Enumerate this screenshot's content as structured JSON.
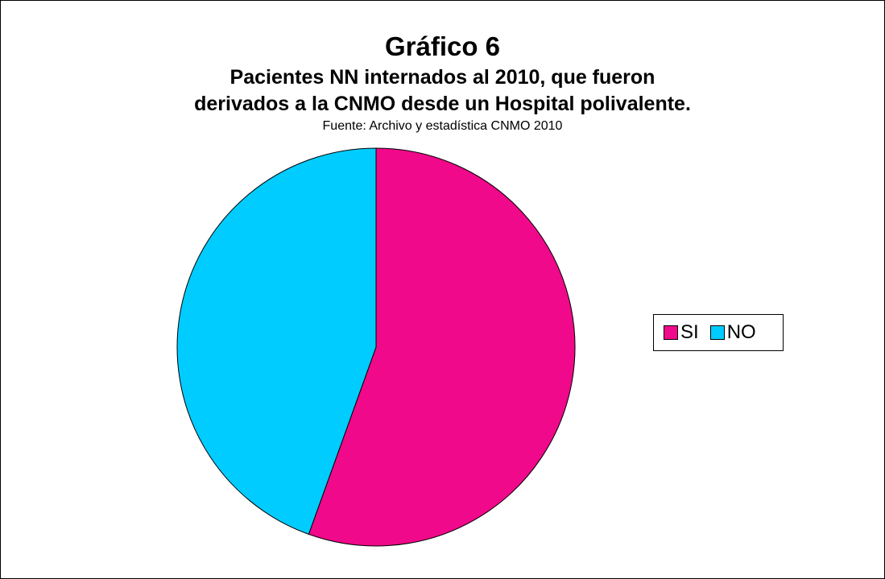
{
  "chart_data": {
    "type": "pie",
    "title": "Gráfico 6",
    "subtitle_lines": [
      "Pacientes NN internados al 2010, que fueron",
      "derivados a la CNMO desde un Hospital polivalente."
    ],
    "source": "Fuente: Archivo y estadística CNMO 2010",
    "slices": [
      {
        "label": "SI",
        "value": 55.5,
        "color": "#F0098A"
      },
      {
        "label": "NO",
        "value": 44.5,
        "color": "#00CCFF"
      }
    ],
    "legend_position": "right"
  }
}
